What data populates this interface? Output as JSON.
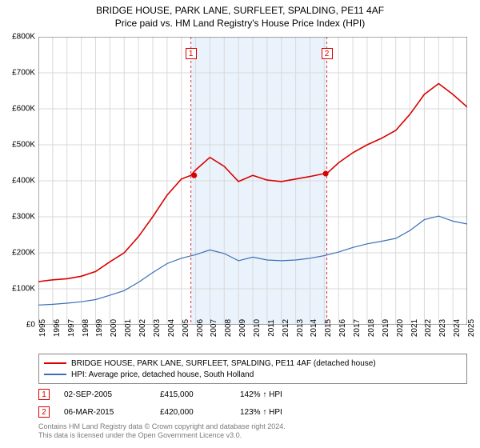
{
  "title_line1": "BRIDGE HOUSE, PARK LANE, SURFLEET, SPALDING, PE11 4AF",
  "title_line2": "Price paid vs. HM Land Registry's House Price Index (HPI)",
  "chart": {
    "type": "line",
    "background_color": "#ffffff",
    "grid_color": "#d9d9d9",
    "axis_color": "#555555",
    "x_years": [
      1995,
      1996,
      1997,
      1998,
      1999,
      2000,
      2001,
      2002,
      2003,
      2004,
      2005,
      2006,
      2007,
      2008,
      2009,
      2010,
      2011,
      2012,
      2013,
      2014,
      2015,
      2016,
      2017,
      2018,
      2019,
      2020,
      2021,
      2022,
      2023,
      2024,
      2025
    ],
    "xlim": [
      1995,
      2025
    ],
    "ylim": [
      0,
      800000
    ],
    "ytick_step": 100000,
    "ytick_labels": [
      "£0",
      "£100K",
      "£200K",
      "£300K",
      "£400K",
      "£500K",
      "£600K",
      "£700K",
      "£800K"
    ],
    "band": {
      "start": 2005.67,
      "end": 2015.18,
      "fill": "#eaf2fb"
    },
    "band_lines_color": "#d33",
    "band_lines_dash": "3 3",
    "series": [
      {
        "name": "BRIDGE HOUSE, PARK LANE, SURFLEET, SPALDING, PE11 4AF (detached house)",
        "color": "#d90000",
        "width": 1.6,
        "points": [
          [
            1995,
            120000
          ],
          [
            1996,
            125000
          ],
          [
            1997,
            128000
          ],
          [
            1998,
            135000
          ],
          [
            1999,
            148000
          ],
          [
            2000,
            175000
          ],
          [
            2001,
            200000
          ],
          [
            2002,
            245000
          ],
          [
            2003,
            300000
          ],
          [
            2004,
            360000
          ],
          [
            2005,
            405000
          ],
          [
            2005.67,
            415000
          ],
          [
            2006,
            430000
          ],
          [
            2007,
            465000
          ],
          [
            2008,
            440000
          ],
          [
            2009,
            398000
          ],
          [
            2010,
            415000
          ],
          [
            2011,
            402000
          ],
          [
            2012,
            398000
          ],
          [
            2013,
            405000
          ],
          [
            2014,
            412000
          ],
          [
            2015,
            420000
          ],
          [
            2015.18,
            420000
          ],
          [
            2016,
            450000
          ],
          [
            2017,
            478000
          ],
          [
            2018,
            500000
          ],
          [
            2019,
            518000
          ],
          [
            2020,
            540000
          ],
          [
            2021,
            585000
          ],
          [
            2022,
            640000
          ],
          [
            2023,
            670000
          ],
          [
            2024,
            640000
          ],
          [
            2025,
            605000
          ]
        ]
      },
      {
        "name": "HPI: Average price, detached house, South Holland",
        "color": "#3b6fb6",
        "width": 1.2,
        "points": [
          [
            1995,
            55000
          ],
          [
            1996,
            57000
          ],
          [
            1997,
            60000
          ],
          [
            1998,
            64000
          ],
          [
            1999,
            70000
          ],
          [
            2000,
            82000
          ],
          [
            2001,
            95000
          ],
          [
            2002,
            118000
          ],
          [
            2003,
            145000
          ],
          [
            2004,
            170000
          ],
          [
            2005,
            185000
          ],
          [
            2006,
            195000
          ],
          [
            2007,
            208000
          ],
          [
            2008,
            198000
          ],
          [
            2009,
            178000
          ],
          [
            2010,
            188000
          ],
          [
            2011,
            180000
          ],
          [
            2012,
            178000
          ],
          [
            2013,
            180000
          ],
          [
            2014,
            185000
          ],
          [
            2015,
            192000
          ],
          [
            2016,
            202000
          ],
          [
            2017,
            215000
          ],
          [
            2018,
            225000
          ],
          [
            2019,
            232000
          ],
          [
            2020,
            240000
          ],
          [
            2021,
            262000
          ],
          [
            2022,
            292000
          ],
          [
            2023,
            302000
          ],
          [
            2024,
            288000
          ],
          [
            2025,
            280000
          ]
        ]
      }
    ],
    "sale_markers": [
      {
        "n": "1",
        "x": 2005.9,
        "y": 415000,
        "label_x": 2005.67,
        "label_y_top": 60
      },
      {
        "n": "2",
        "x": 2015.1,
        "y": 420000,
        "label_x": 2015.18,
        "label_y_top": 60
      }
    ],
    "marker_dot_color": "#d90000",
    "marker_dot_radius": 3.5
  },
  "legend": {
    "items": [
      {
        "color": "#d90000",
        "label": "BRIDGE HOUSE, PARK LANE, SURFLEET, SPALDING, PE11 4AF (detached house)"
      },
      {
        "color": "#3b6fb6",
        "label": "HPI: Average price, detached house, South Holland"
      }
    ]
  },
  "sales": [
    {
      "n": "1",
      "date": "02-SEP-2005",
      "price": "£415,000",
      "vs": "142% ↑ HPI"
    },
    {
      "n": "2",
      "date": "06-MAR-2015",
      "price": "£420,000",
      "vs": "123% ↑ HPI"
    }
  ],
  "attribution_line1": "Contains HM Land Registry data © Crown copyright and database right 2024.",
  "attribution_line2": "This data is licensed under the Open Government Licence v3.0."
}
